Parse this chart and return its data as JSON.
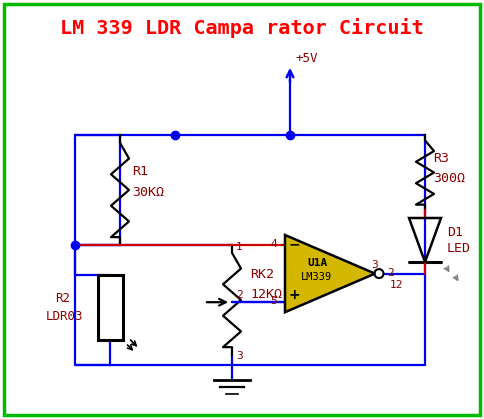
{
  "title": "LM 339 LDR Campa rator Circuit",
  "title_color": "#FF0000",
  "bg_color": "#FFFFFF",
  "border_color": "#00BB00",
  "wire_color": "#0000EE",
  "text_color": "#8B0000",
  "red_wire_color": "#CC0000",
  "component_color": "#000000",
  "opamp_fill": "#D4B800",
  "vcc_label": "+5V",
  "r1_label1": "R1",
  "r1_label2": "30KΩ",
  "r2_label1": "R2",
  "r2_label2": "LDR03",
  "rk2_label1": "RK2",
  "rk2_label2": "12KΩ",
  "r3_label1": "R3",
  "r3_label2": "300Ω",
  "d1_label1": "D1",
  "d1_label2": "LED",
  "u1a_label": "U1A",
  "lm_label": "LM339",
  "pin2": "2",
  "pin3": "3",
  "pin4": "4",
  "pin5": "5",
  "pin12": "12",
  "pin1_rk2": "1",
  "pin3_rk2": "3"
}
